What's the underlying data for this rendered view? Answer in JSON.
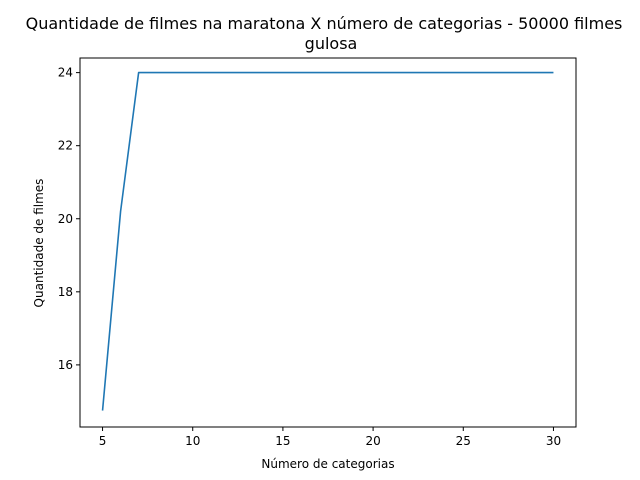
{
  "chart_data": {
    "type": "line",
    "title": "Quantidade de filmes na maratona X número de categorias - 50000 filmes",
    "subtitle": "gulosa",
    "xlabel": "Número de categorias",
    "ylabel": "Quantidade de filmes",
    "xlim": [
      3.75,
      31.25
    ],
    "ylim": [
      14.3,
      24.4
    ],
    "xticks": [
      5,
      10,
      15,
      20,
      25,
      30
    ],
    "yticks": [
      16,
      18,
      20,
      22,
      24
    ],
    "grid": false,
    "series": [
      {
        "color": "#1f77b4",
        "x": [
          5,
          6,
          7,
          8,
          9,
          10,
          11,
          12,
          13,
          14,
          15,
          16,
          17,
          18,
          19,
          20,
          21,
          22,
          23,
          24,
          25,
          26,
          27,
          28,
          29,
          30
        ],
        "y": [
          14.75,
          20.2,
          24,
          24,
          24,
          24,
          24,
          24,
          24,
          24,
          24,
          24,
          24,
          24,
          24,
          24,
          24,
          24,
          24,
          24,
          24,
          24,
          24,
          24,
          24,
          24
        ]
      }
    ]
  }
}
